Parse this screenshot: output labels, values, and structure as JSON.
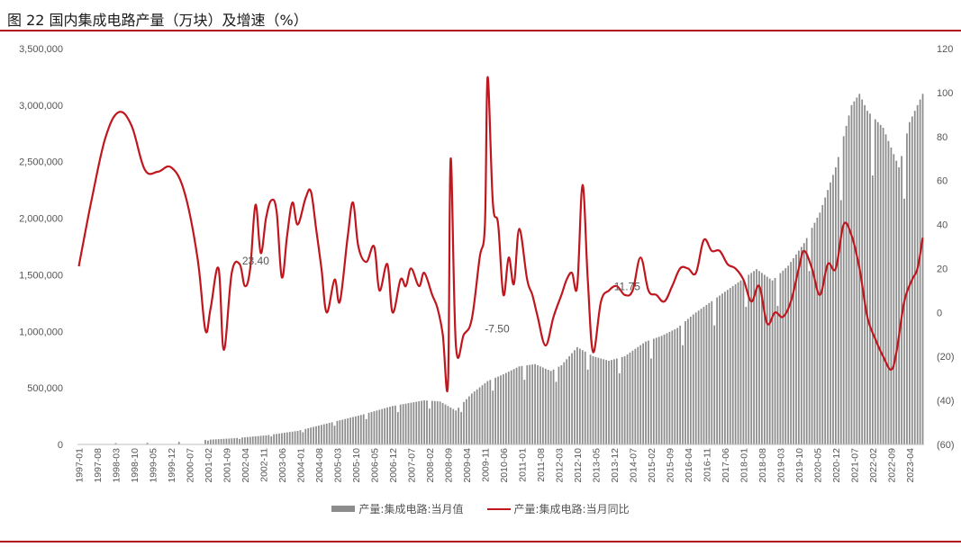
{
  "title": "图 22 国内集成电路产量（万块）及增速（%）",
  "legend": {
    "bar_label": "产量:集成电路:当月值",
    "line_label": "产量:集成电路:当月同比"
  },
  "colors": {
    "bar": "#8c8c8c",
    "line": "#c0161d",
    "rule": "#b0101a"
  },
  "chart_data": {
    "type": "bar+line",
    "title": "图 22 国内集成电路产量（万块）及增速（%）",
    "x_start": "1997-01",
    "x_end": "2023-09",
    "x_tick_labels": [
      "1997-01",
      "1997-08",
      "1998-03",
      "1998-10",
      "1999-05",
      "1999-12",
      "2000-07",
      "2001-02",
      "2001-09",
      "2002-04",
      "2002-11",
      "2003-06",
      "2004-01",
      "2004-08",
      "2005-03",
      "2005-10",
      "2006-05",
      "2006-12",
      "2007-07",
      "2008-02",
      "2008-09",
      "2009-04",
      "2009-11",
      "2010-06",
      "2011-01",
      "2011-08",
      "2012-03",
      "2012-10",
      "2013-05",
      "2013-12",
      "2014-07",
      "2015-02",
      "2015-09",
      "2016-04",
      "2016-11",
      "2017-06",
      "2018-01",
      "2018-08",
      "2019-03",
      "2019-10",
      "2020-05",
      "2020-12",
      "2021-07",
      "2022-02",
      "2022-09",
      "2023-04"
    ],
    "y_left": {
      "ylim": [
        0,
        3500000
      ],
      "ticks": [
        "0",
        "500,000",
        "1,000,000",
        "1,500,000",
        "2,000,000",
        "2,500,000",
        "3,000,000",
        "3,500,000"
      ]
    },
    "y_right": {
      "ylim": [
        -60,
        120
      ],
      "ticks": [
        "(60)",
        "(40)",
        "(20)",
        "0",
        "20",
        "40",
        "60",
        "80",
        "100",
        "120"
      ]
    },
    "annotations": [
      {
        "text": "23.40",
        "x": "2002-05",
        "y": 23.4
      },
      {
        "text": "-7.50",
        "x": "2010-01",
        "y": -7.5
      },
      {
        "text": "11.75",
        "x": "2014-02",
        "y": 11.75
      }
    ],
    "series": [
      {
        "name": "产量:集成电路:当月值",
        "type": "bar",
        "anchors": [
          [
            "1997-01",
            2000
          ],
          [
            "1998-03",
            12000
          ],
          [
            "1999-06",
            15000
          ],
          [
            "2000-06",
            25000
          ],
          [
            "2001-01",
            40000
          ],
          [
            "2001-12",
            55000
          ],
          [
            "2002-12",
            80000
          ],
          [
            "2003-12",
            120000
          ],
          [
            "2004-12",
            190000
          ],
          [
            "2005-12",
            260000
          ],
          [
            "2006-12",
            340000
          ],
          [
            "2007-12",
            390000
          ],
          [
            "2008-06",
            380000
          ],
          [
            "2008-12",
            300000
          ],
          [
            "2009-06",
            450000
          ],
          [
            "2009-12",
            560000
          ],
          [
            "2010-06",
            620000
          ],
          [
            "2010-12",
            690000
          ],
          [
            "2011-06",
            710000
          ],
          [
            "2011-12",
            650000
          ],
          [
            "2012-04",
            700000
          ],
          [
            "2012-10",
            860000
          ],
          [
            "2013-04",
            780000
          ],
          [
            "2013-10",
            740000
          ],
          [
            "2014-04",
            780000
          ],
          [
            "2014-12",
            910000
          ],
          [
            "2015-06",
            960000
          ],
          [
            "2015-12",
            1030000
          ],
          [
            "2016-06",
            1150000
          ],
          [
            "2016-12",
            1250000
          ],
          [
            "2017-06",
            1350000
          ],
          [
            "2017-12",
            1450000
          ],
          [
            "2018-06",
            1550000
          ],
          [
            "2018-12",
            1450000
          ],
          [
            "2019-06",
            1580000
          ],
          [
            "2019-12",
            1780000
          ],
          [
            "2020-06",
            2050000
          ],
          [
            "2020-12",
            2450000
          ],
          [
            "2021-06",
            3000000
          ],
          [
            "2021-09",
            3100000
          ],
          [
            "2021-12",
            2950000
          ],
          [
            "2022-06",
            2800000
          ],
          [
            "2022-12",
            2450000
          ],
          [
            "2023-04",
            2850000
          ],
          [
            "2023-09",
            3100000
          ]
        ]
      },
      {
        "name": "产量:集成电路:当月同比",
        "type": "line",
        "anchors": [
          [
            "1997-01",
            21
          ],
          [
            "1997-06",
            52
          ],
          [
            "1997-11",
            79
          ],
          [
            "1998-04",
            91
          ],
          [
            "1998-09",
            85
          ],
          [
            "1999-02",
            65
          ],
          [
            "1999-07",
            64
          ],
          [
            "1999-12",
            66
          ],
          [
            "2000-05",
            55
          ],
          [
            "2000-10",
            25
          ],
          [
            "2001-01",
            -8
          ],
          [
            "2001-03",
            2
          ],
          [
            "2001-06",
            20
          ],
          [
            "2001-08",
            -17
          ],
          [
            "2001-11",
            18
          ],
          [
            "2002-02",
            22
          ],
          [
            "2002-04",
            12
          ],
          [
            "2002-06",
            20
          ],
          [
            "2002-08",
            49
          ],
          [
            "2002-10",
            27
          ],
          [
            "2002-12",
            43
          ],
          [
            "2003-02",
            51
          ],
          [
            "2003-04",
            46
          ],
          [
            "2003-06",
            16
          ],
          [
            "2003-08",
            35
          ],
          [
            "2003-10",
            50
          ],
          [
            "2003-12",
            40
          ],
          [
            "2004-03",
            52
          ],
          [
            "2004-05",
            55
          ],
          [
            "2004-07",
            38
          ],
          [
            "2004-09",
            20
          ],
          [
            "2004-11",
            0
          ],
          [
            "2005-02",
            15
          ],
          [
            "2005-04",
            5
          ],
          [
            "2005-07",
            35
          ],
          [
            "2005-09",
            50
          ],
          [
            "2005-11",
            30
          ],
          [
            "2006-02",
            23
          ],
          [
            "2006-05",
            30
          ],
          [
            "2006-07",
            10
          ],
          [
            "2006-10",
            22
          ],
          [
            "2006-12",
            0
          ],
          [
            "2007-03",
            15
          ],
          [
            "2007-05",
            12
          ],
          [
            "2007-07",
            20
          ],
          [
            "2007-10",
            12
          ],
          [
            "2007-12",
            18
          ],
          [
            "2008-03",
            8
          ],
          [
            "2008-05",
            2
          ],
          [
            "2008-07",
            -10
          ],
          [
            "2008-09",
            -32
          ],
          [
            "2008-10",
            70
          ],
          [
            "2008-12",
            -15
          ],
          [
            "2009-03",
            -10
          ],
          [
            "2009-06",
            -3
          ],
          [
            "2009-09",
            25
          ],
          [
            "2009-11",
            40
          ],
          [
            "2009-12",
            107
          ],
          [
            "2010-02",
            50
          ],
          [
            "2010-04",
            40
          ],
          [
            "2010-06",
            8
          ],
          [
            "2010-08",
            25
          ],
          [
            "2010-10",
            13
          ],
          [
            "2010-12",
            38
          ],
          [
            "2011-03",
            15
          ],
          [
            "2011-05",
            8
          ],
          [
            "2011-07",
            -2
          ],
          [
            "2011-10",
            -15
          ],
          [
            "2012-01",
            -2
          ],
          [
            "2012-04",
            8
          ],
          [
            "2012-06",
            15
          ],
          [
            "2012-08",
            18
          ],
          [
            "2012-10",
            12
          ],
          [
            "2012-12",
            58
          ],
          [
            "2013-02",
            15
          ],
          [
            "2013-04",
            -18
          ],
          [
            "2013-07",
            5
          ],
          [
            "2013-10",
            10
          ],
          [
            "2014-01",
            12
          ],
          [
            "2014-04",
            8
          ],
          [
            "2014-07",
            10
          ],
          [
            "2014-10",
            25
          ],
          [
            "2015-01",
            10
          ],
          [
            "2015-04",
            8
          ],
          [
            "2015-07",
            5
          ],
          [
            "2015-10",
            12
          ],
          [
            "2016-01",
            20
          ],
          [
            "2016-04",
            20
          ],
          [
            "2016-07",
            18
          ],
          [
            "2016-10",
            33
          ],
          [
            "2017-01",
            28
          ],
          [
            "2017-04",
            28
          ],
          [
            "2017-07",
            22
          ],
          [
            "2017-10",
            20
          ],
          [
            "2018-01",
            15
          ],
          [
            "2018-04",
            5
          ],
          [
            "2018-07",
            12
          ],
          [
            "2018-10",
            -5
          ],
          [
            "2019-01",
            0
          ],
          [
            "2019-04",
            -2
          ],
          [
            "2019-07",
            5
          ],
          [
            "2019-10",
            20
          ],
          [
            "2019-12",
            28
          ],
          [
            "2020-03",
            20
          ],
          [
            "2020-06",
            8
          ],
          [
            "2020-09",
            22
          ],
          [
            "2020-12",
            20
          ],
          [
            "2021-03",
            40
          ],
          [
            "2021-06",
            35
          ],
          [
            "2021-09",
            20
          ],
          [
            "2021-12",
            -2
          ],
          [
            "2022-03",
            -12
          ],
          [
            "2022-06",
            -20
          ],
          [
            "2022-09",
            -26
          ],
          [
            "2022-11",
            -18
          ],
          [
            "2023-02",
            5
          ],
          [
            "2023-05",
            15
          ],
          [
            "2023-07",
            20
          ],
          [
            "2023-09",
            34
          ]
        ]
      }
    ]
  }
}
